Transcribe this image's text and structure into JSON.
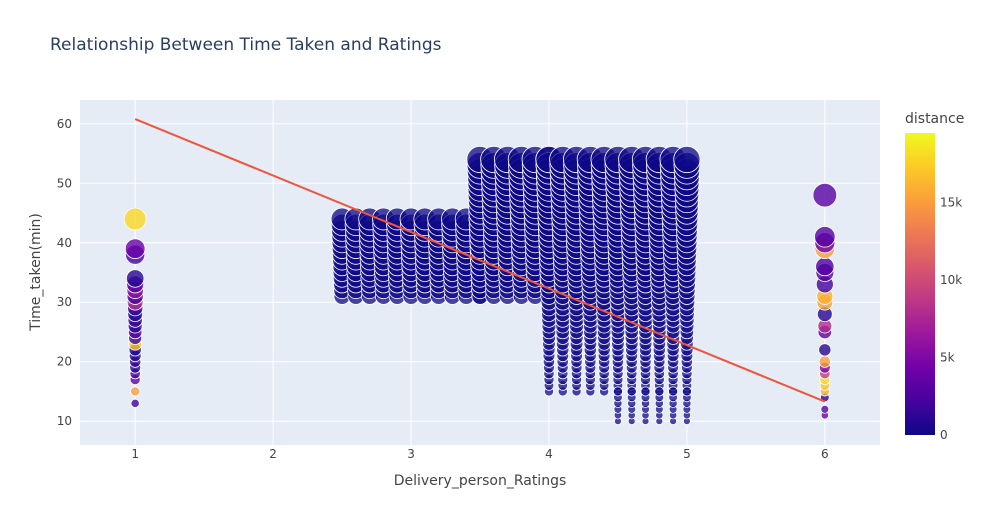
{
  "chart_data": {
    "type": "scatter",
    "title": "Relationship Between Time Taken and Ratings",
    "xlabel": "Delivery_person_Ratings",
    "ylabel": "Time_taken(min)",
    "xlim": [
      0.6,
      6.4
    ],
    "ylim": [
      6,
      64
    ],
    "x_ticks": [
      1,
      2,
      3,
      4,
      5,
      6
    ],
    "y_ticks": [
      10,
      20,
      30,
      40,
      50,
      60
    ],
    "grid": true,
    "colorbar": {
      "title": "distance",
      "range": [
        0,
        19500
      ],
      "ticks": [
        {
          "value": 0,
          "label": "0"
        },
        {
          "value": 5000,
          "label": "5k"
        },
        {
          "value": 10000,
          "label": "10k"
        },
        {
          "value": 15000,
          "label": "15k"
        }
      ],
      "colors": [
        "#0d0887",
        "#46039f",
        "#7201a8",
        "#9c179e",
        "#bd3786",
        "#d8576b",
        "#ed7953",
        "#fb9f3a",
        "#fdca26",
        "#f0f921"
      ]
    },
    "colors": {
      "trendline": "#ef553b",
      "plot_background": "#e5ecf6",
      "title_text": "#2a3f5f",
      "axis_text": "#444444"
    },
    "trendline": {
      "x": [
        1,
        6
      ],
      "y": [
        60.8,
        13.3
      ]
    },
    "series": [
      {
        "x": 1,
        "y": [
          13,
          15,
          17,
          18,
          19,
          20,
          21,
          22,
          23,
          24,
          25,
          26,
          27,
          28,
          29,
          30,
          31,
          32,
          33,
          34,
          38,
          39,
          44
        ],
        "distance": [
          2000,
          15000,
          3000,
          2500,
          1000,
          1500,
          1000,
          500,
          17000,
          1500,
          3000,
          1000,
          1500,
          1000,
          1500,
          8000,
          2000,
          6000,
          3000,
          1000,
          2000,
          4000,
          18000
        ]
      },
      {
        "x": 6,
        "y": [
          11,
          12,
          14,
          15,
          16,
          17,
          18,
          19,
          20,
          22,
          25,
          26,
          28,
          30,
          31,
          33,
          35,
          36,
          39,
          40,
          41,
          48
        ],
        "distance": [
          4000,
          3000,
          1000,
          16000,
          17000,
          18000,
          9000,
          5000,
          15000,
          1000,
          3000,
          8000,
          1000,
          15000,
          16000,
          2000,
          3000,
          2500,
          15000,
          4000,
          3000,
          3000
        ]
      }
    ],
    "clusters": [
      {
        "x_range": [
          2.5,
          3.5
        ],
        "x_step": 0.1,
        "y_range": [
          31,
          44
        ],
        "fill": "#0d0887"
      },
      {
        "x_range": [
          3.5,
          4.0
        ],
        "x_step": 0.1,
        "y_range": [
          31,
          54
        ],
        "fill": "#0d0887"
      },
      {
        "x_range": [
          4.0,
          5.0
        ],
        "x_step": 0.1,
        "y_range": [
          15,
          54
        ],
        "fill": "#0d0887"
      },
      {
        "x_range": [
          4.5,
          5.0
        ],
        "x_step": 0.1,
        "y_range": [
          10,
          15
        ],
        "fill": "#0d0887"
      }
    ]
  }
}
